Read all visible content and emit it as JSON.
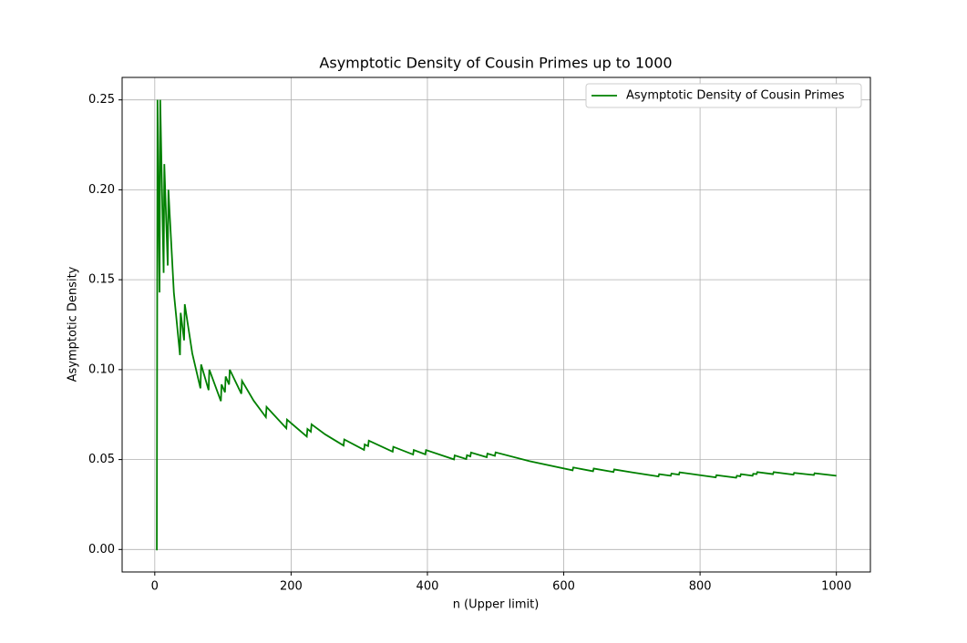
{
  "chart_data": {
    "type": "line",
    "title": "Asymptotic Density of Cousin Primes up to 1000",
    "x_label": "n (Upper limit)",
    "y_label": "Asymptotic Density",
    "x": [
      2,
      3,
      4,
      7,
      8,
      13,
      14,
      19,
      20,
      28,
      37,
      38,
      43,
      44,
      55,
      67,
      68,
      79,
      80,
      97,
      98,
      103,
      104,
      109,
      110,
      127,
      128,
      145,
      163,
      164,
      193,
      194,
      223,
      224,
      229,
      230,
      250,
      277,
      278,
      307,
      308,
      313,
      314,
      349,
      350,
      379,
      380,
      397,
      398,
      439,
      440,
      457,
      458,
      463,
      464,
      487,
      488,
      499,
      500,
      550,
      613,
      614,
      643,
      644,
      673,
      674,
      700,
      739,
      740,
      757,
      758,
      769,
      770,
      823,
      824,
      853,
      854,
      859,
      860,
      877,
      878,
      883,
      884,
      907,
      908,
      937,
      938,
      967,
      968,
      1000
    ],
    "series": [
      {
        "name": "Asymptotic Density of Cousin Primes",
        "color": "#008000",
        "values": [
          0,
          0,
          0.25,
          0.1429,
          0.25,
          0.1538,
          0.2143,
          0.1579,
          0.2,
          0.1429,
          0.1081,
          0.1316,
          0.1163,
          0.1364,
          0.1091,
          0.0896,
          0.1029,
          0.0886,
          0.1,
          0.0825,
          0.0918,
          0.0874,
          0.0962,
          0.0917,
          0.1,
          0.0866,
          0.0938,
          0.0828,
          0.0736,
          0.0793,
          0.0674,
          0.0722,
          0.0628,
          0.067,
          0.0655,
          0.0696,
          0.064,
          0.0578,
          0.0612,
          0.0554,
          0.0584,
          0.0575,
          0.0605,
          0.0544,
          0.0571,
          0.0528,
          0.0553,
          0.0529,
          0.0553,
          0.0501,
          0.0523,
          0.0503,
          0.0524,
          0.0518,
          0.0539,
          0.0513,
          0.0533,
          0.0521,
          0.054,
          0.0491,
          0.044,
          0.0456,
          0.0435,
          0.045,
          0.0431,
          0.0445,
          0.0429,
          0.0406,
          0.0419,
          0.041,
          0.0422,
          0.0416,
          0.0429,
          0.0401,
          0.0413,
          0.0399,
          0.041,
          0.0407,
          0.0419,
          0.041,
          0.0421,
          0.0419,
          0.043,
          0.0419,
          0.043,
          0.0416,
          0.0426,
          0.0414,
          0.0424,
          0.041
        ]
      }
    ],
    "xlim": [
      -47.9,
      1049.9
    ],
    "ylim": [
      -0.0125,
      0.2625
    ],
    "xticks": [
      0,
      200,
      400,
      600,
      800,
      1000
    ],
    "yticks": [
      {
        "value": 0,
        "label": "0.00"
      },
      {
        "value": 0.05,
        "label": "0.05"
      },
      {
        "value": 0.1,
        "label": "0.10"
      },
      {
        "value": 0.15,
        "label": "0.15"
      },
      {
        "value": 0.2,
        "label": "0.20"
      },
      {
        "value": 0.25,
        "label": "0.25"
      }
    ],
    "grid": true,
    "legend": "upper right"
  }
}
